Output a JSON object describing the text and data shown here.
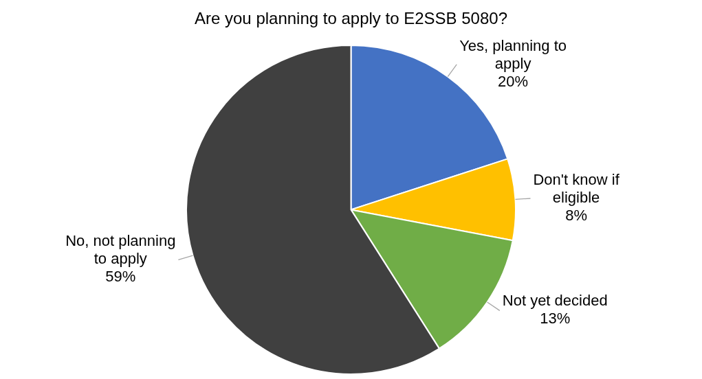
{
  "chart_data": {
    "type": "pie",
    "title": "Are you planning to apply to E2SSB 5080?",
    "categories": [
      "Yes, planning to apply",
      "Don't know if eligible",
      "Not yet decided",
      "No, not planning to apply"
    ],
    "values": [
      20,
      8,
      13,
      59
    ],
    "value_labels": [
      "20%",
      "8%",
      "13%",
      "59%"
    ],
    "colors": [
      "#4472c4",
      "#ffc000",
      "#70ad47",
      "#404040"
    ],
    "legend": false
  }
}
